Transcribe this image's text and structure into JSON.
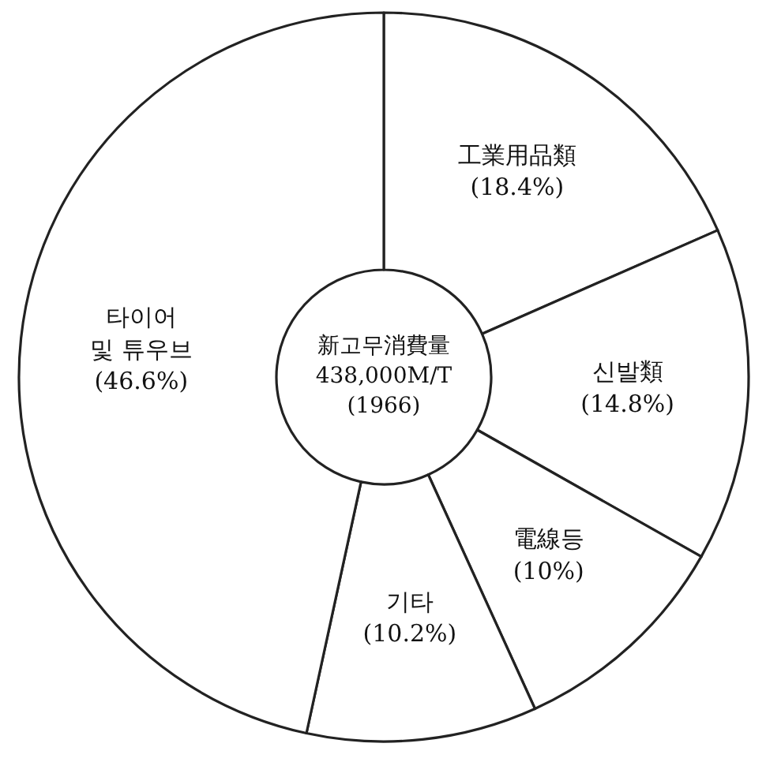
{
  "chart_data": {
    "type": "donut",
    "title": "新고무消費量",
    "annotations": [
      "438,000M/T",
      "(1966)"
    ],
    "categories": [
      "工業用品類",
      "신발類",
      "電線등",
      "기타",
      "타이어\n및 튜우브"
    ],
    "values": [
      18.4,
      14.8,
      10,
      10.2,
      46.6
    ],
    "colors": [
      "#ffffff",
      "#ffffff",
      "#ffffff",
      "#ffffff",
      "#ffffff"
    ],
    "value_labels": [
      "(18.4%)",
      "(14.8%)",
      "(10%)",
      "(10.2%)",
      "(46.6%)"
    ]
  }
}
